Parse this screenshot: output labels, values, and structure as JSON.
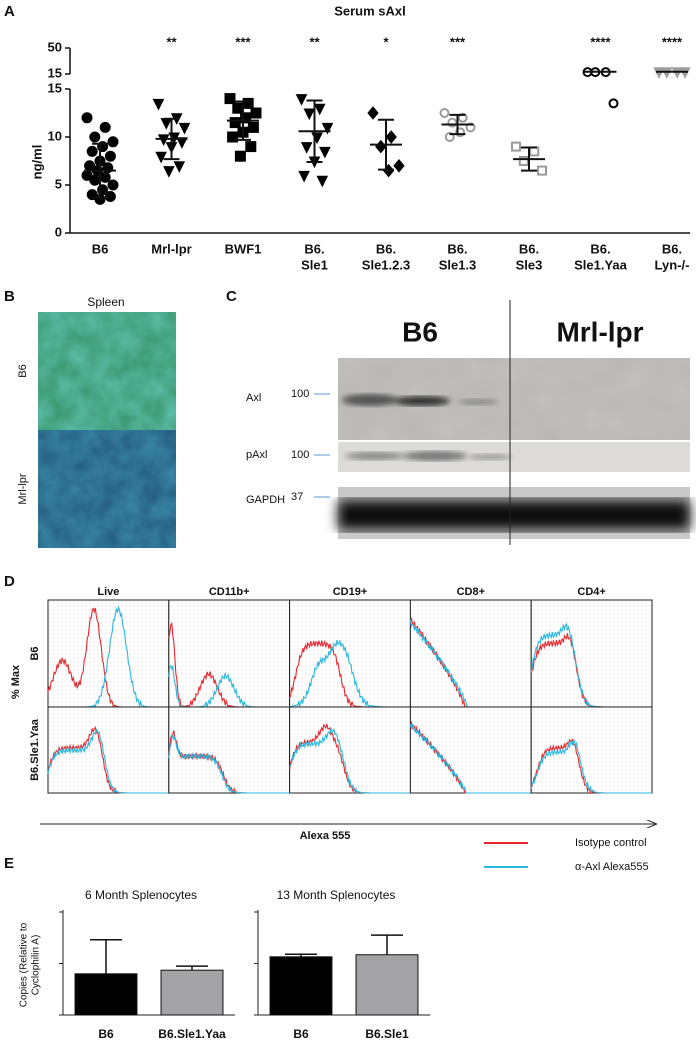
{
  "panel_labels": [
    "A",
    "B",
    "C",
    "D",
    "E"
  ],
  "chart_data": [
    {
      "type": "dot",
      "title": "Serum sAxl",
      "ylabel": "ng/ml",
      "ylim": [
        0,
        15
      ],
      "yticks": [
        0,
        5,
        10,
        15
      ],
      "y_upper_lim": [
        15,
        50
      ],
      "y_upper_ticks": [
        15,
        50
      ],
      "groups": [
        {
          "label": [
            "B6"
          ],
          "stars": null,
          "marker": "circle",
          "color": "#000000",
          "filled": true,
          "values": [
            12,
            11,
            10,
            9.5,
            9,
            8.5,
            8,
            7.5,
            7,
            6.8,
            6.5,
            6,
            5.8,
            5.5,
            5,
            4.5,
            4,
            3.8,
            3.5
          ],
          "mean": 6.5,
          "sd": 2.8
        },
        {
          "label": [
            "Mrl-lpr"
          ],
          "stars": "**",
          "marker": "triangle-down",
          "color": "#000000",
          "filled": true,
          "values": [
            13.5,
            12,
            11.5,
            11,
            10,
            9.8,
            9.5,
            9,
            8,
            7,
            6.5
          ],
          "mean": 9.8,
          "sd": 2.1
        },
        {
          "label": [
            "BWF1"
          ],
          "stars": "***",
          "marker": "square",
          "color": "#000000",
          "filled": true,
          "values": [
            14,
            13.5,
            13,
            12.5,
            12,
            11.5,
            11,
            10.5,
            10,
            9,
            8
          ],
          "mean": 11.7,
          "sd": 2
        },
        {
          "label": [
            "B6.",
            "Sle1"
          ],
          "stars": "**",
          "marker": "triangle-down",
          "color": "#000000",
          "filled": true,
          "values": [
            14,
            13,
            12.5,
            11,
            10,
            9,
            8.5,
            7.5,
            6,
            5.5
          ],
          "mean": 10.6,
          "sd": 3.2
        },
        {
          "label": [
            "B6.",
            "Sle1.2.3"
          ],
          "stars": "*",
          "marker": "diamond",
          "color": "#000000",
          "filled": true,
          "values": [
            12.5,
            10,
            9,
            7,
            6.5
          ],
          "mean": 9.2,
          "sd": 2.6
        },
        {
          "label": [
            "B6.",
            "Sle1.3"
          ],
          "stars": "***",
          "marker": "circle",
          "color": "#9a9a9a",
          "filled": false,
          "values": [
            12.5,
            12,
            11.5,
            11,
            10.5,
            10
          ],
          "mean": 11.3,
          "sd": 1
        },
        {
          "label": [
            "B6.",
            "Sle3"
          ],
          "stars": null,
          "marker": "square",
          "color": "#9a9a9a",
          "filled": false,
          "values": [
            9,
            8.5,
            7.5,
            6.5
          ],
          "mean": 7.7,
          "sd": 1.2
        },
        {
          "label": [
            "B6.",
            "Sle1.Yaa"
          ],
          "stars": "****",
          "marker": "circle",
          "color": "#000000",
          "filled": false,
          "values": [
            17.5,
            17.5,
            17.5,
            13.5
          ],
          "mean": 18
        },
        {
          "label": [
            "B6.",
            "Lyn-/-"
          ],
          "stars": "****",
          "marker": "triangle-down",
          "color": "#a0a0a0",
          "filled": true,
          "values": [
            18,
            18,
            18,
            18
          ],
          "mean": 18
        }
      ]
    },
    {
      "type": "bar",
      "title": "6 Month Splenocytes",
      "ylabel": [
        "Copies (Relative to",
        "Cyclophilin A)"
      ],
      "categories": [
        "B6",
        "B6.Sle1.Yaa"
      ],
      "values": [
        0.8,
        0.87
      ],
      "errors": [
        0.66,
        0.08
      ],
      "colors": [
        "#000000",
        "#a3a3a6"
      ],
      "ylim": [
        0,
        2
      ],
      "yticks": [
        0,
        1,
        2
      ]
    },
    {
      "type": "bar",
      "title": "13 Month Splenocytes",
      "categories": [
        "B6",
        "B6.Sle1"
      ],
      "values": [
        1.13,
        1.17
      ],
      "errors": [
        0.05,
        0.38
      ],
      "colors": [
        "#000000",
        "#a3a3a6"
      ],
      "ylim": [
        0,
        2
      ],
      "yticks": [
        0,
        1,
        2
      ]
    }
  ],
  "spleen": {
    "title": "Spleen",
    "rows": [
      "B6",
      "Mrl-lpr"
    ]
  },
  "blot": {
    "groups": [
      "B6",
      "Mrl-lpr"
    ],
    "rows": [
      {
        "name": "Axl",
        "marker": 100
      },
      {
        "name": "pAxl",
        "marker": 100
      },
      {
        "name": "GAPDH",
        "marker": 37
      }
    ]
  },
  "flow": {
    "columns": [
      "Live",
      "CD11b+",
      "CD19+",
      "CD8+",
      "CD4+"
    ],
    "rows": [
      "B6",
      "B6.Sle1.Yaa"
    ],
    "ylabel": "% Max",
    "xlabel": "Alexa 555",
    "legend": [
      {
        "name": "Isotype control",
        "color": "#e8262b"
      },
      {
        "name": "α-Axl Alexa555",
        "color": "#2bb8e0"
      }
    ]
  }
}
